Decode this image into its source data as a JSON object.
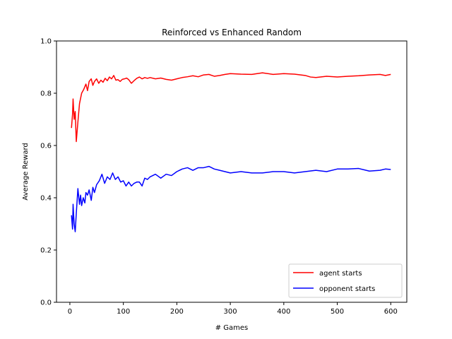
{
  "chart_data": {
    "type": "line",
    "title": "Reinforced vs Enhanced Random",
    "xlabel": "# Games",
    "ylabel": "Average Reward",
    "xlim": [
      -25,
      630
    ],
    "ylim": [
      0.0,
      1.0
    ],
    "xticks": [
      0,
      100,
      200,
      300,
      400,
      500,
      600
    ],
    "yticks": [
      0.0,
      0.2,
      0.4,
      0.6,
      0.8,
      1.0
    ],
    "xtick_labels": [
      "0",
      "100",
      "200",
      "300",
      "400",
      "500",
      "600"
    ],
    "ytick_labels": [
      "0.0",
      "0.2",
      "0.4",
      "0.6",
      "0.8",
      "1.0"
    ],
    "grid": false,
    "legend_position": "lower-right",
    "series": [
      {
        "name": "agent starts",
        "color": "#ff0000",
        "x": [
          3,
          5,
          6,
          8,
          10,
          12,
          15,
          18,
          22,
          26,
          30,
          33,
          36,
          40,
          43,
          46,
          50,
          54,
          58,
          62,
          66,
          70,
          74,
          78,
          82,
          86,
          90,
          94,
          98,
          102,
          106,
          110,
          115,
          120,
          125,
          130,
          135,
          140,
          145,
          150,
          160,
          170,
          180,
          190,
          200,
          210,
          220,
          230,
          240,
          250,
          260,
          270,
          280,
          290,
          300,
          320,
          340,
          360,
          380,
          400,
          420,
          440,
          450,
          460,
          480,
          500,
          520,
          540,
          560,
          580,
          590,
          600
        ],
        "y": [
          0.667,
          0.72,
          0.778,
          0.7,
          0.73,
          0.615,
          0.69,
          0.76,
          0.8,
          0.815,
          0.835,
          0.81,
          0.845,
          0.855,
          0.83,
          0.845,
          0.855,
          0.838,
          0.85,
          0.842,
          0.857,
          0.848,
          0.862,
          0.855,
          0.868,
          0.85,
          0.852,
          0.845,
          0.853,
          0.855,
          0.858,
          0.852,
          0.838,
          0.848,
          0.857,
          0.862,
          0.855,
          0.86,
          0.857,
          0.86,
          0.855,
          0.858,
          0.853,
          0.85,
          0.855,
          0.86,
          0.863,
          0.867,
          0.863,
          0.87,
          0.872,
          0.865,
          0.868,
          0.872,
          0.875,
          0.873,
          0.872,
          0.878,
          0.872,
          0.875,
          0.873,
          0.868,
          0.862,
          0.86,
          0.865,
          0.862,
          0.865,
          0.867,
          0.87,
          0.872,
          0.868,
          0.872
        ]
      },
      {
        "name": "opponent starts",
        "color": "#0000ff",
        "x": [
          3,
          5,
          6,
          8,
          10,
          12,
          15,
          18,
          20,
          22,
          25,
          28,
          30,
          33,
          36,
          40,
          43,
          46,
          50,
          55,
          60,
          65,
          70,
          75,
          80,
          85,
          90,
          95,
          100,
          105,
          110,
          115,
          120,
          125,
          130,
          135,
          140,
          145,
          150,
          160,
          170,
          180,
          190,
          200,
          210,
          220,
          230,
          240,
          250,
          260,
          270,
          280,
          290,
          300,
          320,
          340,
          360,
          380,
          400,
          420,
          440,
          460,
          480,
          500,
          520,
          540,
          560,
          580,
          590,
          600
        ],
        "y": [
          0.333,
          0.28,
          0.375,
          0.3,
          0.27,
          0.34,
          0.435,
          0.375,
          0.41,
          0.37,
          0.4,
          0.38,
          0.42,
          0.41,
          0.43,
          0.39,
          0.44,
          0.42,
          0.45,
          0.465,
          0.49,
          0.455,
          0.48,
          0.47,
          0.495,
          0.47,
          0.48,
          0.46,
          0.465,
          0.445,
          0.46,
          0.445,
          0.455,
          0.46,
          0.46,
          0.445,
          0.475,
          0.47,
          0.48,
          0.49,
          0.475,
          0.49,
          0.485,
          0.5,
          0.51,
          0.515,
          0.505,
          0.515,
          0.515,
          0.52,
          0.51,
          0.505,
          0.5,
          0.495,
          0.5,
          0.495,
          0.495,
          0.5,
          0.5,
          0.495,
          0.5,
          0.505,
          0.5,
          0.51,
          0.51,
          0.512,
          0.502,
          0.505,
          0.51,
          0.508
        ]
      }
    ]
  }
}
